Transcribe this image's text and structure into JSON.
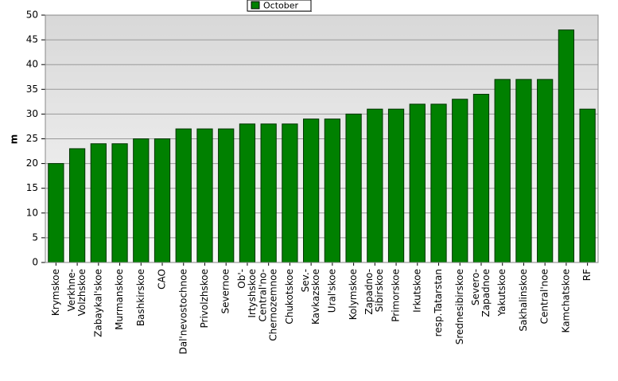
{
  "chart_data": {
    "type": "bar",
    "legend": "October",
    "y_label": "m",
    "categories": [
      "Krymskoe",
      "Verkhne-Volzhskoe",
      "Zabaykal'skoe",
      "Murmanskoe",
      "Bashkirskoe",
      "CAO",
      "Dal'nevostochnoe",
      "Privolzhskoe",
      "Severnoe",
      "Ob'-Irtyshskoe",
      "Central'no-Chernozemnoe",
      "Chukotskoe",
      "Sev.-Kavkazskoe",
      "Ural'skoe",
      "Kolymskoe",
      "Zapadno-Sibirskoe",
      "Primorskoe",
      "Irkutskoe",
      "resp.Tatarstan",
      "Srednesibirskoe",
      "Severo-Zapadnoe",
      "Yakutskoe",
      "Sakhalinskoe",
      "Central'noe",
      "Kamchatskoe",
      "RF"
    ],
    "values": [
      20,
      23,
      24,
      24,
      25,
      25,
      27,
      27,
      27,
      28,
      28,
      28,
      29,
      29,
      30,
      31,
      31,
      32,
      32,
      33,
      34,
      37,
      37,
      37,
      47,
      31
    ],
    "color": "#008000",
    "ylim": [
      0,
      50
    ],
    "yticks": [
      0,
      5,
      10,
      15,
      20,
      25,
      30,
      35,
      40,
      45,
      50
    ],
    "grid": true
  }
}
